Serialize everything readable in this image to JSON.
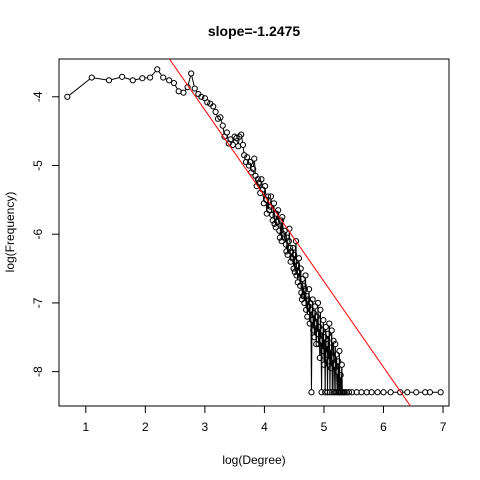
{
  "chart_data": {
    "type": "scatter",
    "title": "slope=-1.2475",
    "xlabel": "log(Degree)",
    "ylabel": "log(Frequency)",
    "xlim": [
      0.55,
      7.1
    ],
    "ylim": [
      -8.5,
      -3.45
    ],
    "x_ticks": [
      1,
      2,
      3,
      4,
      5,
      6,
      7
    ],
    "y_ticks": [
      -8,
      -7,
      -6,
      -5,
      -4
    ],
    "x_tick_labels": [
      "1",
      "2",
      "3",
      "4",
      "5",
      "6",
      "7"
    ],
    "y_tick_labels": [
      "-8",
      "-7",
      "-6",
      "-5",
      "-4"
    ],
    "grid": false,
    "point_style": "open-circle",
    "connected": true,
    "series": [
      {
        "points": [
          [
            0.69,
            -4.0
          ],
          [
            1.1,
            -3.72
          ],
          [
            1.39,
            -3.76
          ],
          [
            1.61,
            -3.71
          ],
          [
            1.79,
            -3.76
          ],
          [
            1.95,
            -3.73
          ],
          [
            2.08,
            -3.72
          ],
          [
            2.2,
            -3.6
          ],
          [
            2.3,
            -3.72
          ],
          [
            2.4,
            -3.76
          ],
          [
            2.48,
            -3.8
          ],
          [
            2.56,
            -3.92
          ],
          [
            2.64,
            -3.94
          ],
          [
            2.71,
            -3.86
          ],
          [
            2.77,
            -3.66
          ],
          [
            2.83,
            -3.88
          ],
          [
            2.89,
            -3.96
          ],
          [
            2.94,
            -4.0
          ],
          [
            3.0,
            -4.02
          ],
          [
            3.04,
            -4.08
          ],
          [
            3.09,
            -4.1
          ],
          [
            3.14,
            -4.14
          ],
          [
            3.18,
            -4.22
          ],
          [
            3.22,
            -4.32
          ],
          [
            3.26,
            -4.3
          ],
          [
            3.3,
            -4.42
          ],
          [
            3.33,
            -4.58
          ],
          [
            3.37,
            -4.52
          ],
          [
            3.4,
            -4.68
          ],
          [
            3.43,
            -4.62
          ],
          [
            3.47,
            -4.7
          ],
          [
            3.5,
            -4.58
          ],
          [
            3.53,
            -4.6
          ],
          [
            3.56,
            -4.72
          ],
          [
            3.58,
            -4.58
          ],
          [
            3.61,
            -4.55
          ],
          [
            3.64,
            -4.7
          ],
          [
            3.66,
            -4.85
          ],
          [
            3.69,
            -4.95
          ],
          [
            3.71,
            -4.88
          ],
          [
            3.74,
            -5.0
          ],
          [
            3.76,
            -4.95
          ],
          [
            3.78,
            -5.1
          ],
          [
            3.81,
            -5.05
          ],
          [
            3.83,
            -4.9
          ],
          [
            3.85,
            -5.15
          ],
          [
            3.87,
            -5.3
          ],
          [
            3.89,
            -5.2
          ],
          [
            3.91,
            -5.25
          ],
          [
            3.93,
            -5.4
          ],
          [
            3.95,
            -5.2
          ],
          [
            3.97,
            -5.35
          ],
          [
            3.99,
            -5.55
          ],
          [
            4.01,
            -5.3
          ],
          [
            4.03,
            -5.5
          ],
          [
            4.04,
            -5.7
          ],
          [
            4.06,
            -5.45
          ],
          [
            4.08,
            -5.65
          ],
          [
            4.1,
            -5.6
          ],
          [
            4.11,
            -5.45
          ],
          [
            4.13,
            -5.72
          ],
          [
            4.14,
            -5.8
          ],
          [
            4.16,
            -5.55
          ],
          [
            4.17,
            -5.85
          ],
          [
            4.19,
            -5.9
          ],
          [
            4.2,
            -5.7
          ],
          [
            4.22,
            -5.82
          ],
          [
            4.23,
            -5.65
          ],
          [
            4.25,
            -5.95
          ],
          [
            4.26,
            -6.05
          ],
          [
            4.28,
            -5.8
          ],
          [
            4.29,
            -6.1
          ],
          [
            4.3,
            -5.75
          ],
          [
            4.32,
            -6.0
          ],
          [
            4.33,
            -6.05
          ],
          [
            4.34,
            -5.95
          ],
          [
            4.36,
            -6.15
          ],
          [
            4.37,
            -6.25
          ],
          [
            4.38,
            -6.05
          ],
          [
            4.39,
            -6.3
          ],
          [
            4.41,
            -6.1
          ],
          [
            4.42,
            -5.92
          ],
          [
            4.43,
            -6.2
          ],
          [
            4.44,
            -6.4
          ],
          [
            4.45,
            -6.25
          ],
          [
            4.47,
            -6.35
          ],
          [
            4.48,
            -6.2
          ],
          [
            4.49,
            -6.5
          ],
          [
            4.5,
            -6.3
          ],
          [
            4.51,
            -6.55
          ],
          [
            4.52,
            -6.4
          ],
          [
            4.53,
            -6.1
          ],
          [
            4.54,
            -6.6
          ],
          [
            4.55,
            -6.45
          ],
          [
            4.56,
            -6.7
          ],
          [
            4.57,
            -6.55
          ],
          [
            4.58,
            -6.35
          ],
          [
            4.6,
            -6.75
          ],
          [
            4.61,
            -6.5
          ],
          [
            4.62,
            -6.85
          ],
          [
            4.63,
            -6.95
          ],
          [
            4.64,
            -6.65
          ],
          [
            4.65,
            -6.9
          ],
          [
            4.66,
            -6.75
          ],
          [
            4.67,
            -7.0
          ],
          [
            4.68,
            -6.8
          ],
          [
            4.69,
            -6.6
          ],
          [
            4.7,
            -7.1
          ],
          [
            4.71,
            -6.9
          ],
          [
            4.72,
            -7.2
          ],
          [
            4.73,
            -6.95
          ],
          [
            4.74,
            -7.05
          ],
          [
            4.75,
            -6.8
          ],
          [
            4.76,
            -7.3
          ],
          [
            4.77,
            -7.0
          ],
          [
            4.78,
            -7.1
          ],
          [
            4.79,
            -8.3
          ],
          [
            4.8,
            -7.25
          ],
          [
            4.81,
            -6.95
          ],
          [
            4.82,
            -7.4
          ],
          [
            4.83,
            -7.15
          ],
          [
            4.84,
            -7.5
          ],
          [
            4.85,
            -7.05
          ],
          [
            4.86,
            -7.3
          ],
          [
            4.87,
            -7.6
          ],
          [
            4.88,
            -7.2
          ],
          [
            4.89,
            -7.45
          ],
          [
            4.9,
            -7.0
          ],
          [
            4.91,
            -7.6
          ],
          [
            4.92,
            -7.35
          ],
          [
            4.93,
            -7.8
          ],
          [
            4.94,
            -7.1
          ],
          [
            4.95,
            -7.55
          ],
          [
            4.96,
            -8.3
          ],
          [
            4.97,
            -7.4
          ],
          [
            4.98,
            -7.7
          ],
          [
            4.99,
            -7.25
          ],
          [
            5.0,
            -7.9
          ],
          [
            5.01,
            -7.5
          ],
          [
            5.02,
            -8.3
          ],
          [
            5.03,
            -7.35
          ],
          [
            5.04,
            -7.75
          ],
          [
            5.05,
            -7.6
          ],
          [
            5.06,
            -8.3
          ],
          [
            5.07,
            -7.45
          ],
          [
            5.08,
            -7.85
          ],
          [
            5.09,
            -7.3
          ],
          [
            5.1,
            -8.3
          ],
          [
            5.11,
            -7.65
          ],
          [
            5.12,
            -7.95
          ],
          [
            5.13,
            -7.4
          ],
          [
            5.14,
            -8.3
          ],
          [
            5.15,
            -7.8
          ],
          [
            5.16,
            -7.55
          ],
          [
            5.17,
            -8.3
          ],
          [
            5.18,
            -7.9
          ],
          [
            5.19,
            -7.6
          ],
          [
            5.2,
            -8.3
          ],
          [
            5.21,
            -7.75
          ],
          [
            5.22,
            -8.0
          ],
          [
            5.23,
            -8.3
          ],
          [
            5.24,
            -7.85
          ],
          [
            5.25,
            -8.3
          ],
          [
            5.26,
            -7.7
          ],
          [
            5.27,
            -8.3
          ],
          [
            5.28,
            -8.05
          ],
          [
            5.29,
            -8.3
          ],
          [
            5.3,
            -7.9
          ],
          [
            5.31,
            -8.3
          ],
          [
            5.33,
            -8.3
          ],
          [
            5.35,
            -8.3
          ],
          [
            5.38,
            -8.3
          ],
          [
            5.42,
            -8.3
          ],
          [
            5.47,
            -8.3
          ],
          [
            5.55,
            -8.3
          ],
          [
            5.63,
            -8.3
          ],
          [
            5.72,
            -8.3
          ],
          [
            5.8,
            -8.3
          ],
          [
            5.9,
            -8.3
          ],
          [
            6.0,
            -8.3
          ],
          [
            6.12,
            -8.3
          ],
          [
            6.28,
            -8.3
          ],
          [
            6.4,
            -8.3
          ],
          [
            6.55,
            -8.3
          ],
          [
            6.7,
            -8.3
          ],
          [
            6.78,
            -8.3
          ],
          [
            6.96,
            -8.3
          ]
        ]
      }
    ],
    "fit_line": {
      "color": "#ff0000",
      "slope": -1.2475,
      "intercept": -0.45
    }
  }
}
